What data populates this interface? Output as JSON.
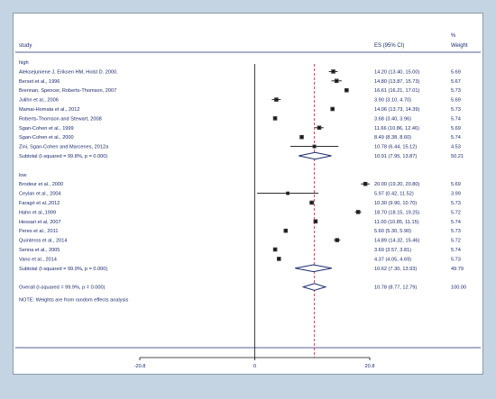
{
  "chart_data": {
    "type": "forest",
    "columns": {
      "study": "study",
      "es": "ES (95% CI)",
      "weight_top": "%",
      "weight": "Weight"
    },
    "groups": [
      {
        "label": "high",
        "studies": [
          {
            "name": "Aleksejuniene J, Eriksen HM, Holst D. 2000.",
            "es": 14.2,
            "lo": 13.4,
            "hi": 15.0,
            "ci_text": "14.20 (13.40, 15.00)",
            "weight": "5.69"
          },
          {
            "name": "Berset et al., 1996",
            "es": 14.8,
            "lo": 13.87,
            "hi": 15.73,
            "ci_text": "14.80 (13.87, 15.73)",
            "weight": "5.67"
          },
          {
            "name": "Brennan, Spencer, Roberts-Thomson, 2007",
            "es": 16.61,
            "lo": 16.21,
            "hi": 17.01,
            "ci_text": "16.61 (16.21, 17.01)",
            "weight": "5.73"
          },
          {
            "name": "Julihn et al., 2006",
            "es": 3.9,
            "lo": 3.1,
            "hi": 4.7,
            "ci_text": "3.90 (3.10, 4.70)",
            "weight": "5.69"
          },
          {
            "name": "Mamai-Homata et al., 2012",
            "es": 14.06,
            "lo": 13.73,
            "hi": 14.39,
            "ci_text": "14.06 (13.73, 14.39)",
            "weight": "5.73"
          },
          {
            "name": "Roberts-Thomson and Stewart, 2008",
            "es": 3.68,
            "lo": 3.4,
            "hi": 3.96,
            "ci_text": "3.68 (3.40, 3.96)",
            "weight": "5.74"
          },
          {
            "name": "Sgan-Cohen et al., 1999",
            "es": 11.66,
            "lo": 10.86,
            "hi": 12.46,
            "ci_text": "11.66 (10.86, 12.46)",
            "weight": "5.69"
          },
          {
            "name": "Sgan-Cohen et al., 2000",
            "es": 8.49,
            "lo": 8.38,
            "hi": 8.6,
            "ci_text": "8.49 (8.38, 8.60)",
            "weight": "5.74"
          },
          {
            "name": "Zini, Sgan-Cohen and Marcenes, 2012a",
            "es": 10.78,
            "lo": 6.44,
            "hi": 15.12,
            "ci_text": "10.78 (6.44, 15.12)",
            "weight": "4.53"
          }
        ],
        "subtotal": {
          "label": "Subtotal  (I-squared = 99.8%, p = 0.000)",
          "es": 10.91,
          "lo": 7.95,
          "hi": 13.87,
          "ci_text": "10.91 (7.95, 13.87)",
          "weight": "50.21"
        }
      },
      {
        "label": "low",
        "studies": [
          {
            "name": "Brodeur et al., 2000",
            "es": 20.0,
            "lo": 19.2,
            "hi": 20.8,
            "ci_text": "20.00 (19.20, 20.80)",
            "weight": "5.69"
          },
          {
            "name": "Ceylan et al., 2004",
            "es": 5.97,
            "lo": 0.42,
            "hi": 11.52,
            "ci_text": "5.97 (0.42, 11.52)",
            "weight": "3.99"
          },
          {
            "name": "Faragó et al.,2012",
            "es": 10.3,
            "lo": 9.9,
            "hi": 10.7,
            "ci_text": "10.30 (9.90, 10.70)",
            "weight": "5.73"
          },
          {
            "name": "Hahn et al.,1999",
            "es": 18.7,
            "lo": 18.15,
            "hi": 19.25,
            "ci_text": "18.70 (18.15, 19.25)",
            "weight": "5.72"
          },
          {
            "name": "Hessari et al, 2007",
            "es": 11.0,
            "lo": 10.85,
            "hi": 11.15,
            "ci_text": "11.00 (10.85, 11.15)",
            "weight": "5.74"
          },
          {
            "name": "Peres et al., 2011",
            "es": 5.6,
            "lo": 5.3,
            "hi": 5.9,
            "ci_text": "5.60 (5.30, 5.90)",
            "weight": "5.73"
          },
          {
            "name": "Quinteros et al., 2014",
            "es": 14.89,
            "lo": 14.32,
            "hi": 15.46,
            "ci_text": "14.89 (14.32, 15.46)",
            "weight": "5.72"
          },
          {
            "name": "Senna et al., 2005",
            "es": 3.69,
            "lo": 3.57,
            "hi": 3.81,
            "ci_text": "3.69 (3.57, 3.81)",
            "weight": "5.74"
          },
          {
            "name": "Vano et al., 2014",
            "es": 4.37,
            "lo": 4.05,
            "hi": 4.69,
            "ci_text": "4.37 (4.05, 4.69)",
            "weight": "5.73"
          }
        ],
        "subtotal": {
          "label": "Subtotal  (I-squared = 99.9%, p = 0.000)",
          "es": 10.62,
          "lo": 7.3,
          "hi": 13.93,
          "ci_text": "10.62 (7.30, 13.93)",
          "weight": "49.79"
        }
      }
    ],
    "overall": {
      "label": "Overall  (I-squared = 99.9%, p = 0.000)",
      "es": 10.78,
      "lo": 8.77,
      "hi": 12.79,
      "ci_text": "10.78 (8.77, 12.79)",
      "weight": "100.00"
    },
    "note": "NOTE: Weights are from random effects analysis",
    "x_ticks": [
      {
        "value": -20.8,
        "label": "-20.8"
      },
      {
        "value": 0,
        "label": "0"
      },
      {
        "value": 20.8,
        "label": "20.8"
      }
    ],
    "x_range": [
      -20.8,
      20.8
    ],
    "null_line": 0,
    "colors": {
      "text": "#1c2a6b",
      "ci_line": "#111111",
      "square": "#333333",
      "diamond": "#1c2a6b",
      "overall_line": "#b0303a",
      "frame": "#8a9aa8",
      "background": "#c5d4e3"
    }
  }
}
